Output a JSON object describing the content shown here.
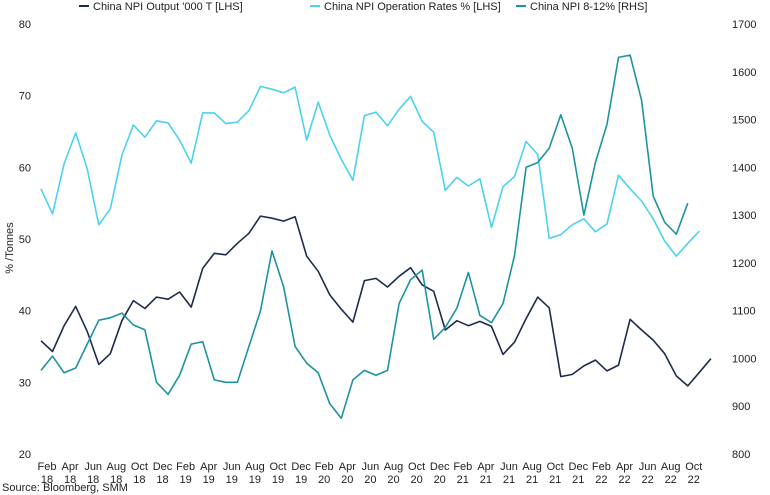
{
  "chart_data": {
    "type": "line",
    "title": "",
    "ylabel": "% /Tonnes",
    "ylabel_right": "",
    "ylim": [
      20,
      80
    ],
    "ylim_right": [
      800,
      1700
    ],
    "y_ticks": [
      20,
      30,
      40,
      50,
      60,
      70,
      80
    ],
    "y_ticks_right": [
      800,
      900,
      1000,
      1100,
      1200,
      1300,
      1400,
      1500,
      1600,
      1700
    ],
    "legend_position": "top",
    "grid": false,
    "source": "Source: Bloomberg, SMM",
    "x_tick_labels": [
      {
        "month": "Feb",
        "year": "18"
      },
      {
        "month": "Apr",
        "year": "18"
      },
      {
        "month": "Jun",
        "year": "18"
      },
      {
        "month": "Aug",
        "year": "18"
      },
      {
        "month": "Oct",
        "year": "18"
      },
      {
        "month": "Dec",
        "year": "18"
      },
      {
        "month": "Feb",
        "year": "19"
      },
      {
        "month": "Apr",
        "year": "19"
      },
      {
        "month": "Jun",
        "year": "19"
      },
      {
        "month": "Aug",
        "year": "19"
      },
      {
        "month": "Oct",
        "year": "19"
      },
      {
        "month": "Dec",
        "year": "19"
      },
      {
        "month": "Feb",
        "year": "20"
      },
      {
        "month": "Apr",
        "year": "20"
      },
      {
        "month": "Jun",
        "year": "20"
      },
      {
        "month": "Aug",
        "year": "20"
      },
      {
        "month": "Oct",
        "year": "20"
      },
      {
        "month": "Dec",
        "year": "20"
      },
      {
        "month": "Feb",
        "year": "21"
      },
      {
        "month": "Apr",
        "year": "21"
      },
      {
        "month": "Jun",
        "year": "21"
      },
      {
        "month": "Aug",
        "year": "21"
      },
      {
        "month": "Oct",
        "year": "21"
      },
      {
        "month": "Dec",
        "year": "21"
      },
      {
        "month": "Feb",
        "year": "22"
      },
      {
        "month": "Apr",
        "year": "22"
      },
      {
        "month": "Jun",
        "year": "22"
      },
      {
        "month": "Aug",
        "year": "22"
      },
      {
        "month": "Oct",
        "year": "22"
      }
    ],
    "x_start_month": "2018-02",
    "series": [
      {
        "name": "China NPI Output '000 T [LHS]",
        "axis": "left",
        "color": "#1c2b4e",
        "values": [
          35.8,
          34.3,
          37.9,
          40.6,
          37.1,
          32.5,
          34.0,
          38.6,
          41.4,
          40.3,
          41.9,
          41.6,
          42.6,
          40.5,
          45.9,
          48.0,
          47.8,
          49.4,
          50.8,
          53.2,
          52.9,
          52.5,
          53.1,
          47.6,
          45.5,
          42.2,
          40.2,
          38.4,
          44.2,
          44.5,
          43.3,
          44.8,
          46.0,
          43.6,
          42.7,
          37.3,
          38.6,
          37.9,
          38.5,
          37.8,
          33.9,
          35.6,
          38.9,
          41.9,
          40.4,
          30.8,
          31.1,
          32.3,
          33.1,
          31.6,
          32.4,
          38.8,
          37.3,
          35.9,
          34.0,
          30.9,
          29.5,
          31.4,
          33.3
        ]
      },
      {
        "name": "China NPI Operation Rates % [LHS]",
        "axis": "left",
        "color": "#4cd2ee",
        "values": [
          57.0,
          53.5,
          60.5,
          64.8,
          59.8,
          52.0,
          54.2,
          61.7,
          65.9,
          64.2,
          66.5,
          66.2,
          63.8,
          60.6,
          67.6,
          67.6,
          66.1,
          66.3,
          67.9,
          71.3,
          70.9,
          70.4,
          71.2,
          63.8,
          69.1,
          64.5,
          61.1,
          58.2,
          67.2,
          67.7,
          65.8,
          68.1,
          69.9,
          66.4,
          64.9,
          56.8,
          58.6,
          57.4,
          58.4,
          51.6,
          57.3,
          58.7,
          63.6,
          61.8,
          50.1,
          50.6,
          52.0,
          52.8,
          51.0,
          52.1,
          58.9,
          57.0,
          55.3,
          52.8,
          49.7,
          47.6,
          49.4,
          51.1
        ]
      },
      {
        "name": "China NPI 8-12% [RHS]",
        "axis": "right",
        "color": "#1e93a0",
        "values": [
          975,
          1005,
          970,
          980,
          1030,
          1080,
          1085,
          1095,
          1070,
          1060,
          950,
          925,
          965,
          1030,
          1035,
          955,
          950,
          950,
          1025,
          1100,
          1225,
          1150,
          1025,
          990,
          970,
          905,
          875,
          955,
          975,
          965,
          975,
          1115,
          1165,
          1185,
          1040,
          1065,
          1105,
          1180,
          1090,
          1075,
          1115,
          1215,
          1400,
          1410,
          1440,
          1510,
          1440,
          1300,
          1410,
          1490,
          1630,
          1635,
          1540,
          1340,
          1285,
          1260,
          1325
        ]
      }
    ]
  }
}
